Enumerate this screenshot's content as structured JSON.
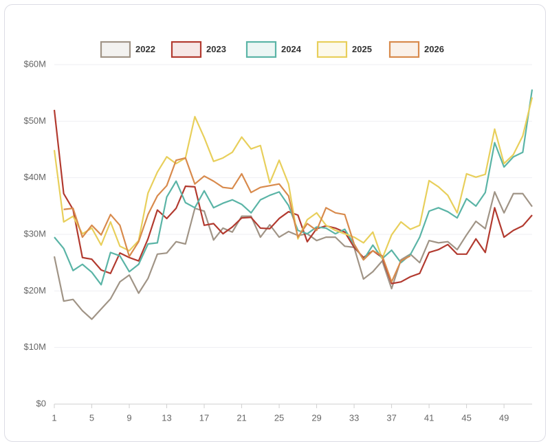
{
  "chart_data": {
    "type": "line",
    "x": [
      1,
      2,
      3,
      4,
      5,
      6,
      7,
      8,
      9,
      10,
      11,
      12,
      13,
      14,
      15,
      16,
      17,
      18,
      19,
      20,
      21,
      22,
      23,
      24,
      25,
      26,
      27,
      28,
      29,
      30,
      31,
      32,
      33,
      34,
      35,
      36,
      37,
      38,
      39,
      40,
      41,
      42,
      43,
      44,
      45,
      46,
      47,
      48,
      49,
      50,
      51,
      52
    ],
    "xlim": [
      1,
      52
    ],
    "xticks": [
      1,
      5,
      9,
      13,
      17,
      21,
      25,
      29,
      33,
      37,
      41,
      45,
      49
    ],
    "ylim": [
      0,
      60
    ],
    "yticks": [
      {
        "value": 0,
        "label": "$0"
      },
      {
        "value": 10,
        "label": "$10M"
      },
      {
        "value": 20,
        "label": "$20M"
      },
      {
        "value": 30,
        "label": "$30M"
      },
      {
        "value": 40,
        "label": "$40M"
      },
      {
        "value": 50,
        "label": "$50M"
      },
      {
        "value": 60,
        "label": "$60M"
      }
    ],
    "grid": true,
    "legend": "top",
    "series": [
      {
        "name": "2022",
        "color": "#a09486",
        "values": [
          26.1,
          18.2,
          18.5,
          16.5,
          15,
          16.8,
          18.6,
          21.6,
          22.8,
          19.6,
          22.2,
          26.5,
          26.7,
          28.7,
          28.3,
          34.6,
          34.1,
          29,
          31.1,
          30.4,
          33.2,
          33.2,
          29.5,
          31.7,
          29.5,
          30.5,
          29.8,
          30.1,
          28.9,
          29.5,
          29.5,
          27.9,
          27.7,
          22.1,
          23.4,
          25.3,
          20.4,
          25.5,
          26.5,
          25,
          28.9,
          28.5,
          28.7,
          27.3,
          29.9,
          32.3,
          31,
          37.5,
          33.8,
          37.2,
          37.2,
          34.9
        ]
      },
      {
        "name": "2023",
        "color": "#b23a2f",
        "values": [
          52,
          37.2,
          34.4,
          25.9,
          25.6,
          23.7,
          23.1,
          26.7,
          25.9,
          25.3,
          29.2,
          34.3,
          32.8,
          34.6,
          38.5,
          38.4,
          31.6,
          31.9,
          30.1,
          31.3,
          32.9,
          33,
          31.1,
          31,
          32.8,
          34,
          33.4,
          28.7,
          31,
          31.5,
          31.1,
          30.4,
          27.7,
          25.9,
          27.1,
          25.9,
          21.3,
          21.6,
          22.5,
          23.1,
          26.8,
          27.3,
          28.2,
          26.5,
          26.5,
          29.2,
          26.8,
          34.7,
          29.5,
          30.7,
          31.5,
          33.4
        ]
      },
      {
        "name": "2024",
        "color": "#5ab4a6",
        "values": [
          29.5,
          27.5,
          23.6,
          24.7,
          23.3,
          21.1,
          26.8,
          26.2,
          23.4,
          24.7,
          28.3,
          28.5,
          36.6,
          39.4,
          35.6,
          34.7,
          37.7,
          34.7,
          35.5,
          36.1,
          35.3,
          33.8,
          36.1,
          36.9,
          37.5,
          35.1,
          30.7,
          30.1,
          31.3,
          31.1,
          30.1,
          30.9,
          28.2,
          25.5,
          28.1,
          25.7,
          27.2,
          25,
          26.4,
          29.5,
          34.1,
          34.7,
          34,
          32.9,
          36.3,
          35,
          37.4,
          46.2,
          41.9,
          43.7,
          44.5,
          55.6
        ]
      },
      {
        "name": "2025",
        "color": "#e8cf5b",
        "values": [
          44.9,
          32.2,
          33.2,
          30.1,
          31.1,
          28.1,
          32.2,
          27.9,
          27.1,
          28.9,
          37.3,
          41,
          43.7,
          42.5,
          43.5,
          50.8,
          47.1,
          42.9,
          43.5,
          44.5,
          47.2,
          45.1,
          45.7,
          39.1,
          43.1,
          38.9,
          29.2,
          32.6,
          33.8,
          31.6,
          30.7,
          30.1,
          29.5,
          28.5,
          30.4,
          25.7,
          29.9,
          32.2,
          30.9,
          31.6,
          39.5,
          38.4,
          36.9,
          33.8,
          40.7,
          40.1,
          40.6,
          48.6,
          42.5,
          44.1,
          47.4,
          54.2
        ]
      },
      {
        "name": "2026",
        "color": "#d88a4c",
        "values": [
          null,
          34.4,
          34.6,
          29.5,
          31.6,
          29.9,
          33.5,
          31.6,
          26.1,
          28.7,
          33.5,
          36.8,
          38.6,
          43.1,
          43.5,
          38.9,
          40.3,
          39.4,
          38.3,
          38.1,
          40.7,
          37.4,
          38.3,
          38.6,
          38.9,
          36.8,
          29.5,
          31.9,
          30.7,
          34.7,
          33.8,
          33.5,
          28.3,
          25.5,
          27.1,
          26.2,
          21.6,
          25.3,
          26.2,
          null,
          null,
          null,
          null,
          null,
          null,
          null,
          null,
          null,
          null,
          null,
          null,
          null
        ]
      }
    ]
  }
}
